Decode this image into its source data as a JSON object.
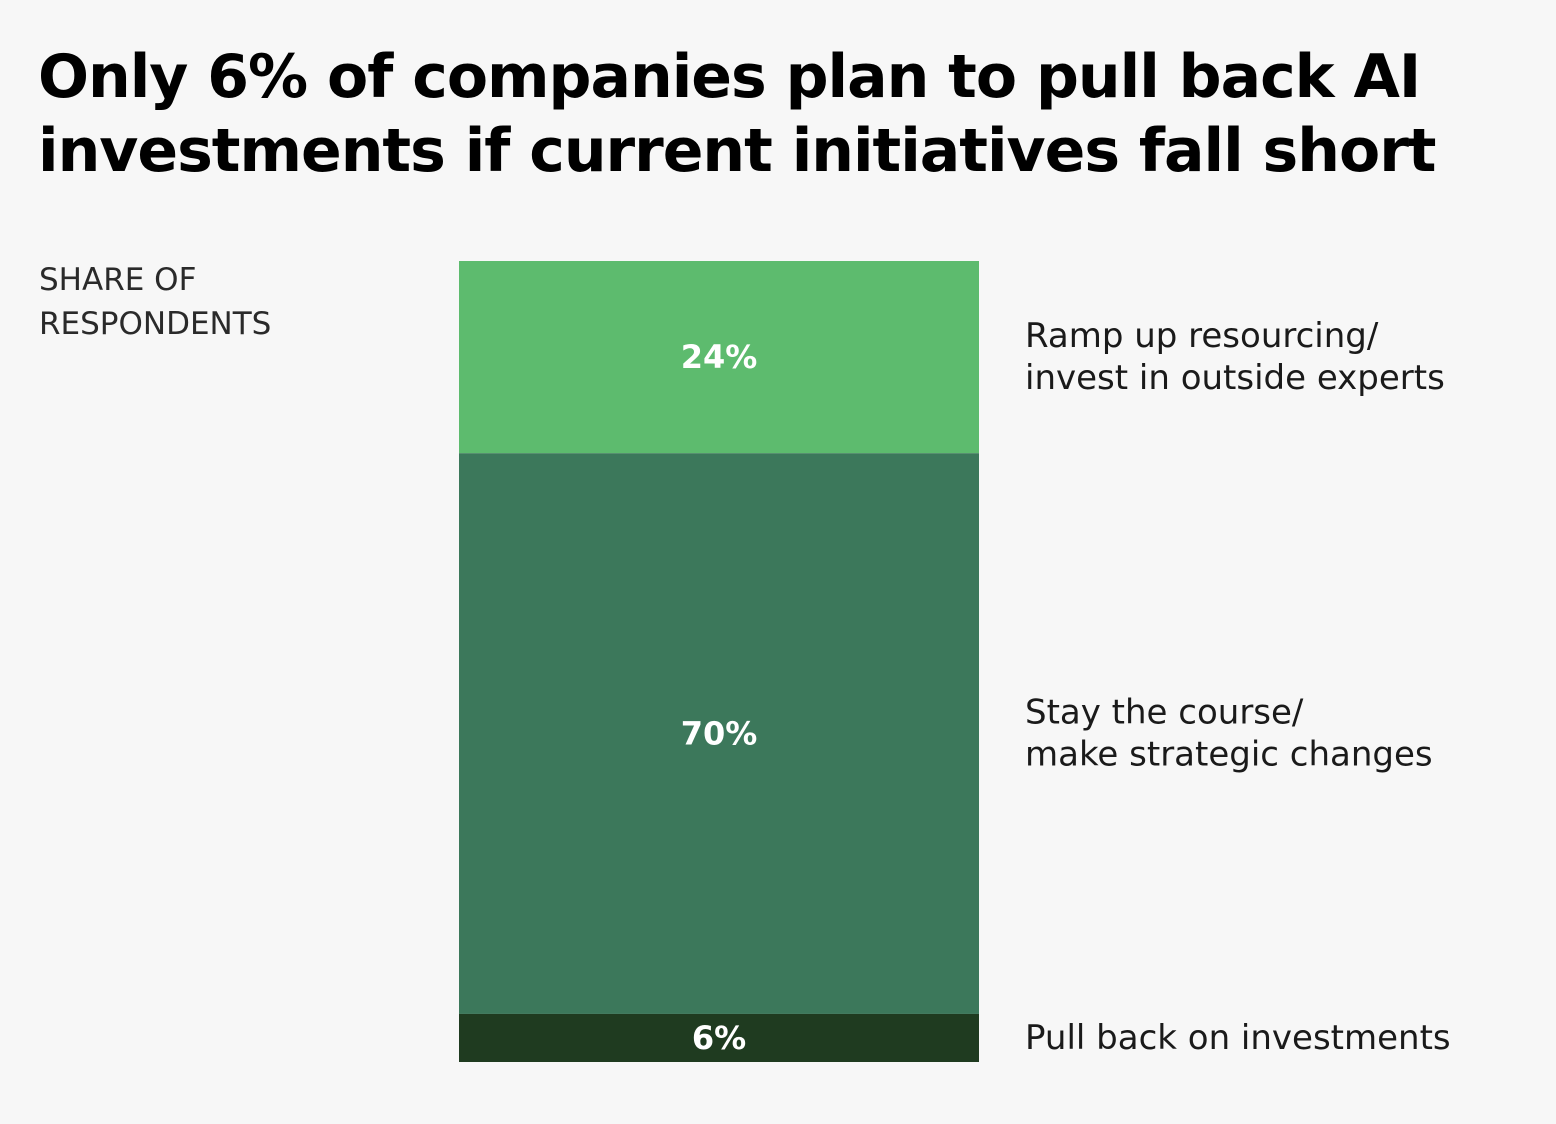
{
  "title_lines": [
    "Only 6% of companies plan to pull back AI",
    "investments if current initiatives fall short"
  ],
  "unit_label_lines": [
    "SHARE OF",
    "RESPONDENTS"
  ],
  "chart_data": {
    "type": "bar",
    "stacked": true,
    "orientation": "vertical",
    "ylim": [
      0,
      100
    ],
    "unit": "%",
    "series": [
      {
        "name": "Ramp up resourcing/ invest in outside experts",
        "label_lines": [
          "Ramp up resourcing/",
          "invest in outside experts"
        ],
        "value": 24,
        "value_label": "24%",
        "color": "#5dbb6e"
      },
      {
        "name": "Stay the course/ make strategic changes",
        "label_lines": [
          "Stay the course/",
          "make strategic changes"
        ],
        "value": 70,
        "value_label": "70%",
        "color": "#3c785b"
      },
      {
        "name": "Pull back on investments",
        "label_lines": [
          "Pull back on investments"
        ],
        "value": 6,
        "value_label": "6%",
        "color": "#1f3b20"
      }
    ]
  }
}
